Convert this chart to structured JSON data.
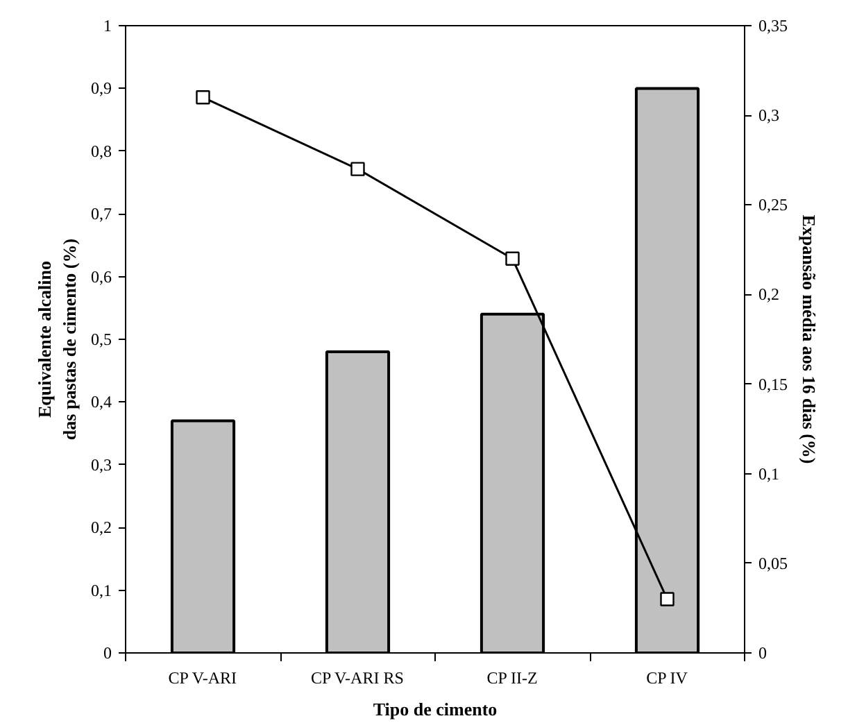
{
  "chart_data": {
    "type": "bar",
    "categories": [
      "CP V-ARI",
      "CP V-ARI RS",
      "CP II-Z",
      "CP IV"
    ],
    "xlabel": "Tipo de cimento",
    "ylabel": "Equivalente alcalino\ndas pastas de cimento (%)",
    "y2label": "Expansão média aos 16 dias (%)",
    "series": [
      {
        "color": "#c0c0c0",
        "values": [
          0.37,
          0.48,
          0.54,
          0.9
        ]
      },
      {
        "type": "line",
        "axis": "y2",
        "color": "#000000",
        "values": [
          0.31,
          0.27,
          0.22,
          0.03
        ],
        "marker": "square",
        "line_style": "solid"
      }
    ],
    "ylim": [
      0,
      1
    ],
    "yticks": [
      0,
      {
        "value": 0.1,
        "label": "0,1"
      },
      {
        "value": 0.2,
        "label": "0,2"
      },
      {
        "value": 0.3,
        "label": "0,3"
      },
      {
        "value": 0.4,
        "label": "0,4"
      },
      {
        "value": 0.5,
        "label": "0,5"
      },
      {
        "value": 0.6,
        "label": "0,6"
      },
      {
        "value": 0.7,
        "label": "0,7"
      },
      {
        "value": 0.8,
        "label": "0,8"
      },
      {
        "value": 0.9,
        "label": "0,9"
      },
      1
    ],
    "y2lim": [
      0,
      0.35
    ],
    "y2ticks": [
      0,
      {
        "value": 0.05,
        "label": "0,05"
      },
      {
        "value": 0.1,
        "label": "0,1"
      },
      {
        "value": 0.15,
        "label": "0,15"
      },
      {
        "value": 0.2,
        "label": "0,2"
      },
      {
        "value": 0.25,
        "label": "0,25"
      },
      {
        "value": 0.3,
        "label": "0,3"
      },
      {
        "value": 0.35,
        "label": "0,35"
      }
    ],
    "grid": false
  }
}
